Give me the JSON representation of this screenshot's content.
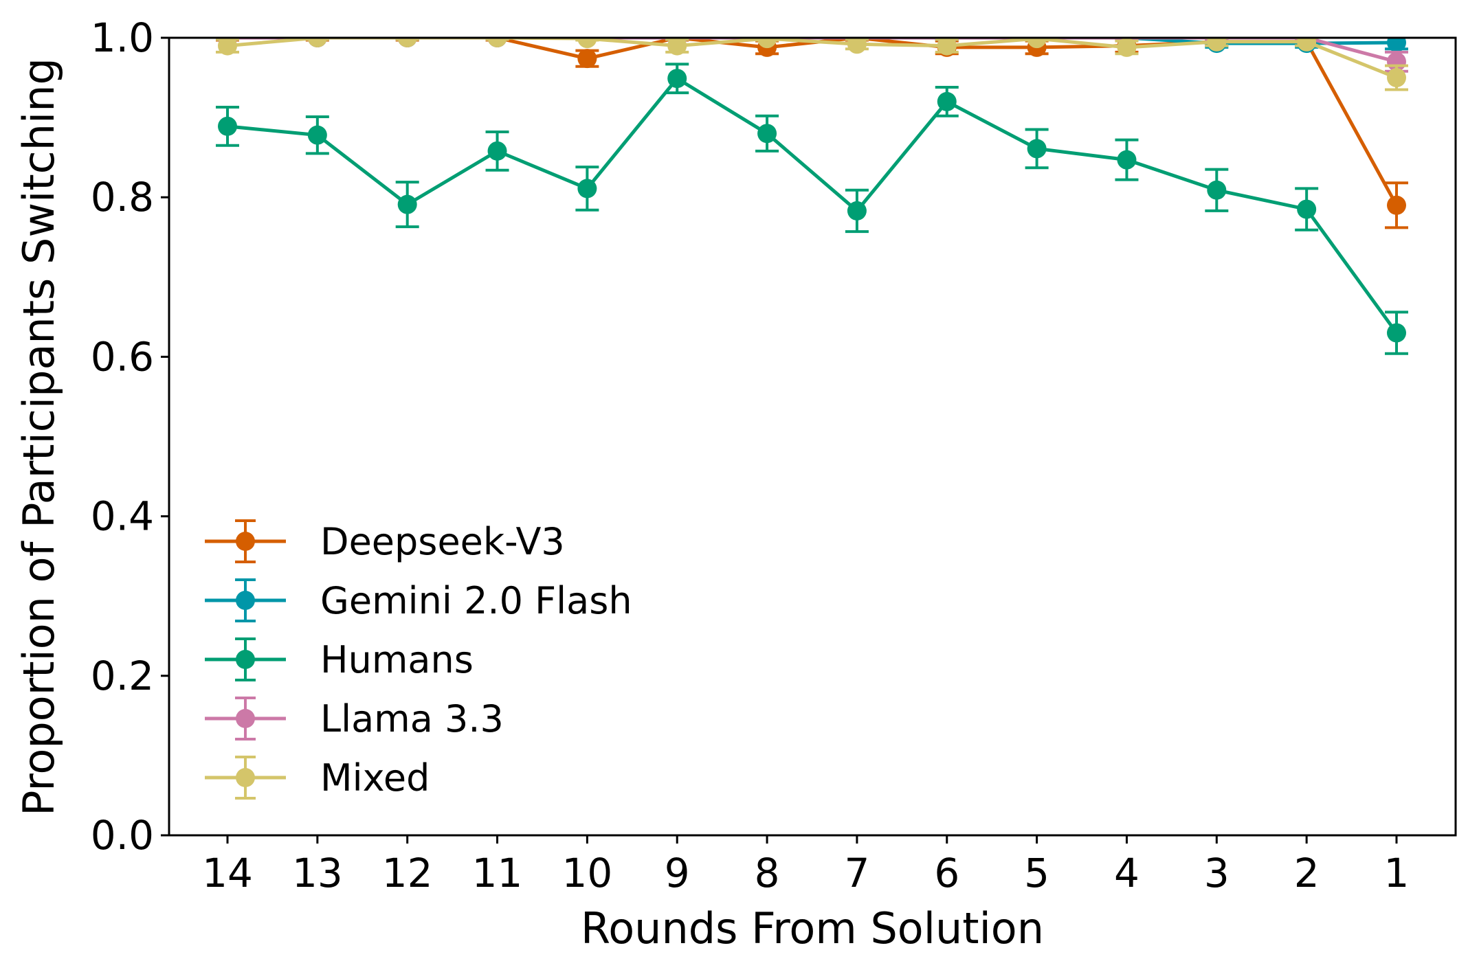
{
  "chart_data": {
    "type": "line",
    "xlabel": "Rounds From Solution",
    "ylabel": "Proportion of Participants Switching",
    "x": [
      14,
      13,
      12,
      11,
      10,
      9,
      8,
      7,
      6,
      5,
      4,
      3,
      2,
      1
    ],
    "x_axis_reversed": true,
    "ylim": [
      0,
      1
    ],
    "yticks": [
      "0.0",
      "0.2",
      "0.4",
      "0.6",
      "0.8",
      "1.0"
    ],
    "grid": false,
    "legend_position": "lower-left",
    "series": [
      {
        "name": "Deepseek-V3",
        "color": "#d55e00",
        "values": [
          1.0,
          1.0,
          1.0,
          1.0,
          0.974,
          1.0,
          0.988,
          1.0,
          0.988,
          0.988,
          0.99,
          0.995,
          0.995,
          0.79
        ],
        "errors": [
          0.003,
          0.003,
          0.003,
          0.003,
          0.01,
          0.003,
          0.008,
          0.003,
          0.008,
          0.008,
          0.008,
          0.005,
          0.005,
          0.028
        ]
      },
      {
        "name": "Gemini 2.0 Flash",
        "color": "#0096a8",
        "values": [
          1.0,
          1.0,
          1.0,
          1.0,
          1.0,
          1.0,
          1.0,
          1.0,
          1.0,
          1.0,
          1.0,
          0.993,
          0.993,
          0.994
        ],
        "errors": [
          0.002,
          0.002,
          0.002,
          0.002,
          0.002,
          0.002,
          0.002,
          0.002,
          0.002,
          0.002,
          0.002,
          0.005,
          0.005,
          0.008
        ]
      },
      {
        "name": "Humans",
        "color": "#009e73",
        "values": [
          0.889,
          0.878,
          0.791,
          0.858,
          0.811,
          0.949,
          0.88,
          0.783,
          0.92,
          0.861,
          0.847,
          0.809,
          0.785,
          0.63
        ],
        "errors": [
          0.024,
          0.023,
          0.028,
          0.024,
          0.027,
          0.018,
          0.022,
          0.026,
          0.018,
          0.024,
          0.025,
          0.026,
          0.026,
          0.026
        ]
      },
      {
        "name": "Llama 3.3",
        "color": "#cc79a7",
        "values": [
          1.0,
          1.0,
          1.0,
          1.0,
          1.0,
          1.0,
          1.0,
          1.0,
          1.0,
          1.0,
          1.0,
          1.0,
          1.0,
          0.97
        ],
        "errors": [
          0.002,
          0.002,
          0.002,
          0.002,
          0.002,
          0.002,
          0.002,
          0.002,
          0.002,
          0.002,
          0.002,
          0.002,
          0.002,
          0.012
        ]
      },
      {
        "name": "Mixed",
        "color": "#d4c56a",
        "values": [
          0.99,
          1.0,
          1.0,
          1.0,
          0.999,
          0.99,
          0.999,
          0.992,
          0.99,
          0.999,
          0.988,
          0.995,
          0.995,
          0.95
        ],
        "errors": [
          0.008,
          0.002,
          0.002,
          0.002,
          0.002,
          0.008,
          0.002,
          0.006,
          0.008,
          0.002,
          0.008,
          0.005,
          0.005,
          0.015
        ]
      }
    ]
  }
}
